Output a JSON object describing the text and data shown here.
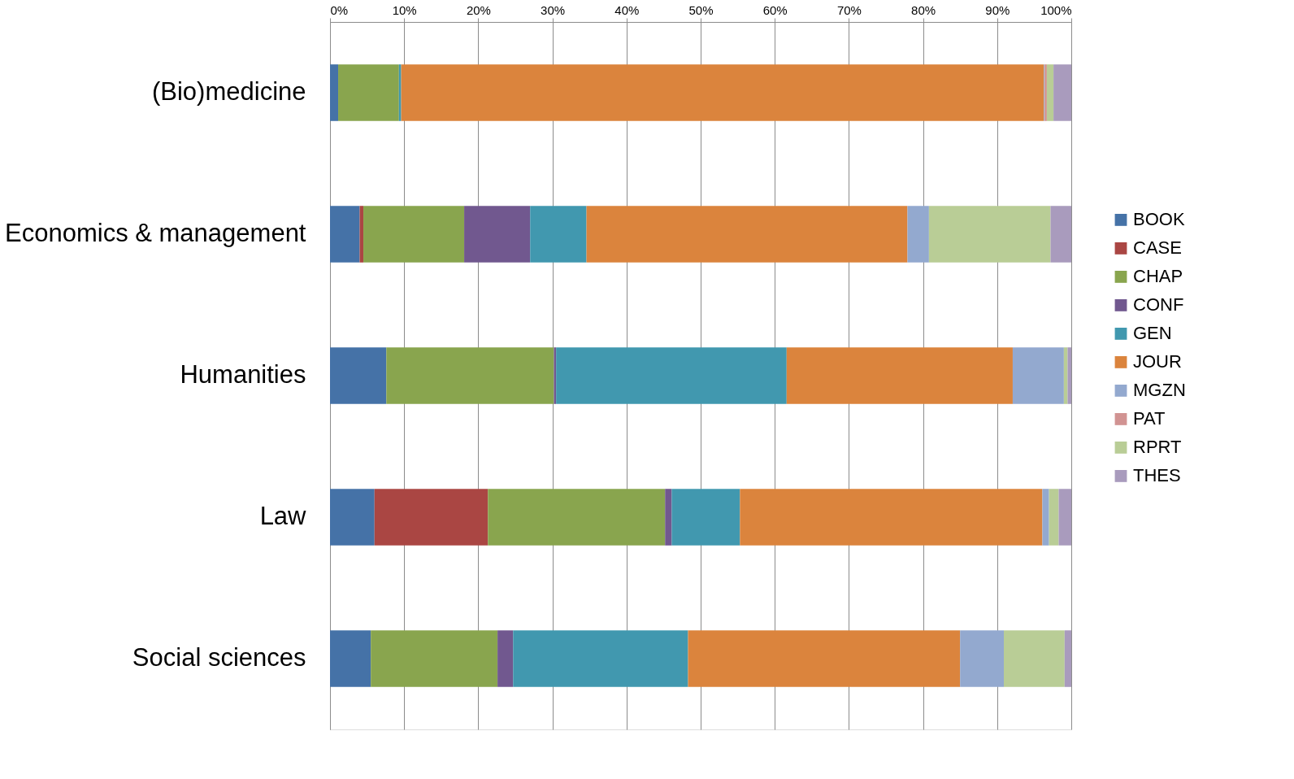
{
  "chart_data": {
    "type": "bar",
    "orientation": "horizontal",
    "stacked": true,
    "categories": [
      "(Bio)medicine",
      "Economics & management",
      "Humanities",
      "Law",
      "Social sciences"
    ],
    "series": [
      {
        "name": "BOOK",
        "color": "#4572a7",
        "values": [
          1.1,
          4.0,
          7.6,
          6.0,
          5.5
        ]
      },
      {
        "name": "CASE",
        "color": "#aa4643",
        "values": [
          0,
          0.5,
          0,
          15.3,
          0
        ]
      },
      {
        "name": "CHAP",
        "color": "#89a54e",
        "values": [
          8.2,
          13.6,
          22.6,
          23.9,
          17.1
        ]
      },
      {
        "name": "CONF",
        "color": "#71588f",
        "values": [
          0,
          8.9,
          0.3,
          0.9,
          2.1
        ]
      },
      {
        "name": "GEN",
        "color": "#4198af",
        "values": [
          0.3,
          7.6,
          31.1,
          9.2,
          23.6
        ]
      },
      {
        "name": "JOUR",
        "color": "#db843d",
        "values": [
          86.7,
          43.3,
          30.5,
          40.8,
          36.7
        ]
      },
      {
        "name": "MGZN",
        "color": "#93a9cf",
        "values": [
          0.1,
          2.9,
          6.9,
          0.9,
          5.9
        ]
      },
      {
        "name": "PAT",
        "color": "#d19392",
        "values": [
          0.3,
          0,
          0,
          0,
          0
        ]
      },
      {
        "name": "RPRT",
        "color": "#b9cd96",
        "values": [
          0.9,
          16.4,
          0.5,
          1.3,
          8.2
        ]
      },
      {
        "name": "THES",
        "color": "#a99bbd",
        "values": [
          2.4,
          2.8,
          0.5,
          1.7,
          0.9
        ]
      }
    ],
    "xlim": [
      0,
      100
    ],
    "xticks": [
      {
        "value": 0,
        "label": "0%"
      },
      {
        "value": 10,
        "label": "10%"
      },
      {
        "value": 20,
        "label": "20%"
      },
      {
        "value": 30,
        "label": "30%"
      },
      {
        "value": 40,
        "label": "40%"
      },
      {
        "value": 50,
        "label": "50%"
      },
      {
        "value": 60,
        "label": "60%"
      },
      {
        "value": 70,
        "label": "70%"
      },
      {
        "value": 80,
        "label": "80%"
      },
      {
        "value": 90,
        "label": "90%"
      },
      {
        "value": 100,
        "label": "100%"
      }
    ],
    "grid": "x",
    "legend": "right"
  }
}
